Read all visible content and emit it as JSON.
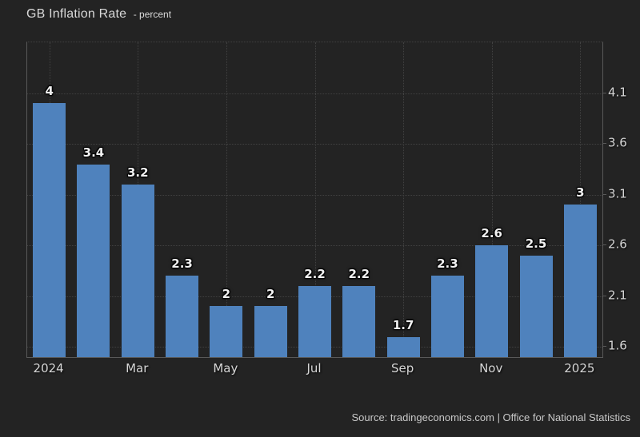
{
  "header": {
    "title": "GB Inflation Rate",
    "subtitle": "- percent"
  },
  "footer": {
    "source": "Source: tradingeconomics.com | Office for National Statistics"
  },
  "colors": {
    "background": "#232323",
    "bar": "#4f82bd",
    "grid": "#414141",
    "axis": "#595959",
    "title_text": "#d9d9d9",
    "tick_text": "#d6d6d6",
    "bar_label_text": "#f1f1f1",
    "footer_text": "#c8c8c8"
  },
  "chart_data": {
    "type": "bar",
    "title": "GB Inflation Rate",
    "subtitle": "- percent",
    "ylabel": "percent",
    "values": [
      4,
      3.4,
      3.2,
      2.3,
      2,
      2,
      2.2,
      2.2,
      1.7,
      2.3,
      2.6,
      2.5,
      3
    ],
    "value_labels": [
      "4",
      "3.4",
      "3.2",
      "2.3",
      "2",
      "2",
      "2.2",
      "2.2",
      "1.7",
      "2.3",
      "2.6",
      "2.5",
      "3"
    ],
    "x_ticks": [
      {
        "bar_index": 0,
        "label": "2024"
      },
      {
        "bar_index": 2,
        "label": "Mar"
      },
      {
        "bar_index": 4,
        "label": "May"
      },
      {
        "bar_index": 6,
        "label": "Jul"
      },
      {
        "bar_index": 8,
        "label": "Sep"
      },
      {
        "bar_index": 10,
        "label": "Nov"
      },
      {
        "bar_index": 12,
        "label": "2025"
      }
    ],
    "y_ticks": [
      4.1,
      3.6,
      3.1,
      2.6,
      2.1,
      1.6
    ],
    "y_tick_labels": [
      "4.1",
      "3.6",
      "3.1",
      "2.6",
      "2.1",
      "1.6"
    ],
    "ylim": [
      1.5,
      4.6
    ],
    "grid": true,
    "legend_position": "none",
    "y_axis_side": "right"
  }
}
